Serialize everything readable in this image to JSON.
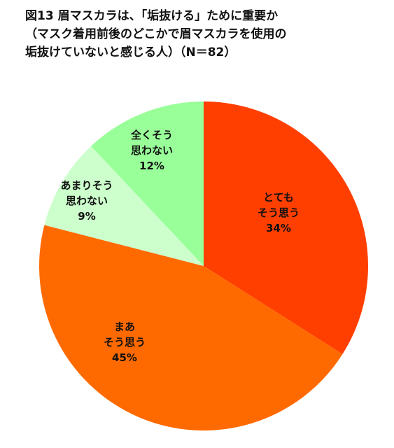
{
  "title": {
    "line1": "図13 眉マスカラは、「垢抜ける」ために重要か",
    "line2": "（マスク着用前後のどこかで眉マスカラを使用の",
    "line3": "垢抜けていないと感じる人）（N＝82）"
  },
  "chart_data": {
    "type": "pie",
    "start_angle_deg": 0,
    "direction": "clockwise",
    "slices": [
      {
        "label_lines": [
          "とても",
          "そう思う"
        ],
        "value": 34,
        "value_label": "34%",
        "color": "#ff3f00"
      },
      {
        "label_lines": [
          "まあ",
          "そう思う"
        ],
        "value": 45,
        "value_label": "45%",
        "color": "#ff6a00"
      },
      {
        "label_lines": [
          "あまりそう",
          "思わない"
        ],
        "value": 9,
        "value_label": "9%",
        "color": "#ccffcc"
      },
      {
        "label_lines": [
          "全くそう",
          "思わない"
        ],
        "value": 12,
        "value_label": "12%",
        "color": "#99ff99"
      }
    ]
  }
}
